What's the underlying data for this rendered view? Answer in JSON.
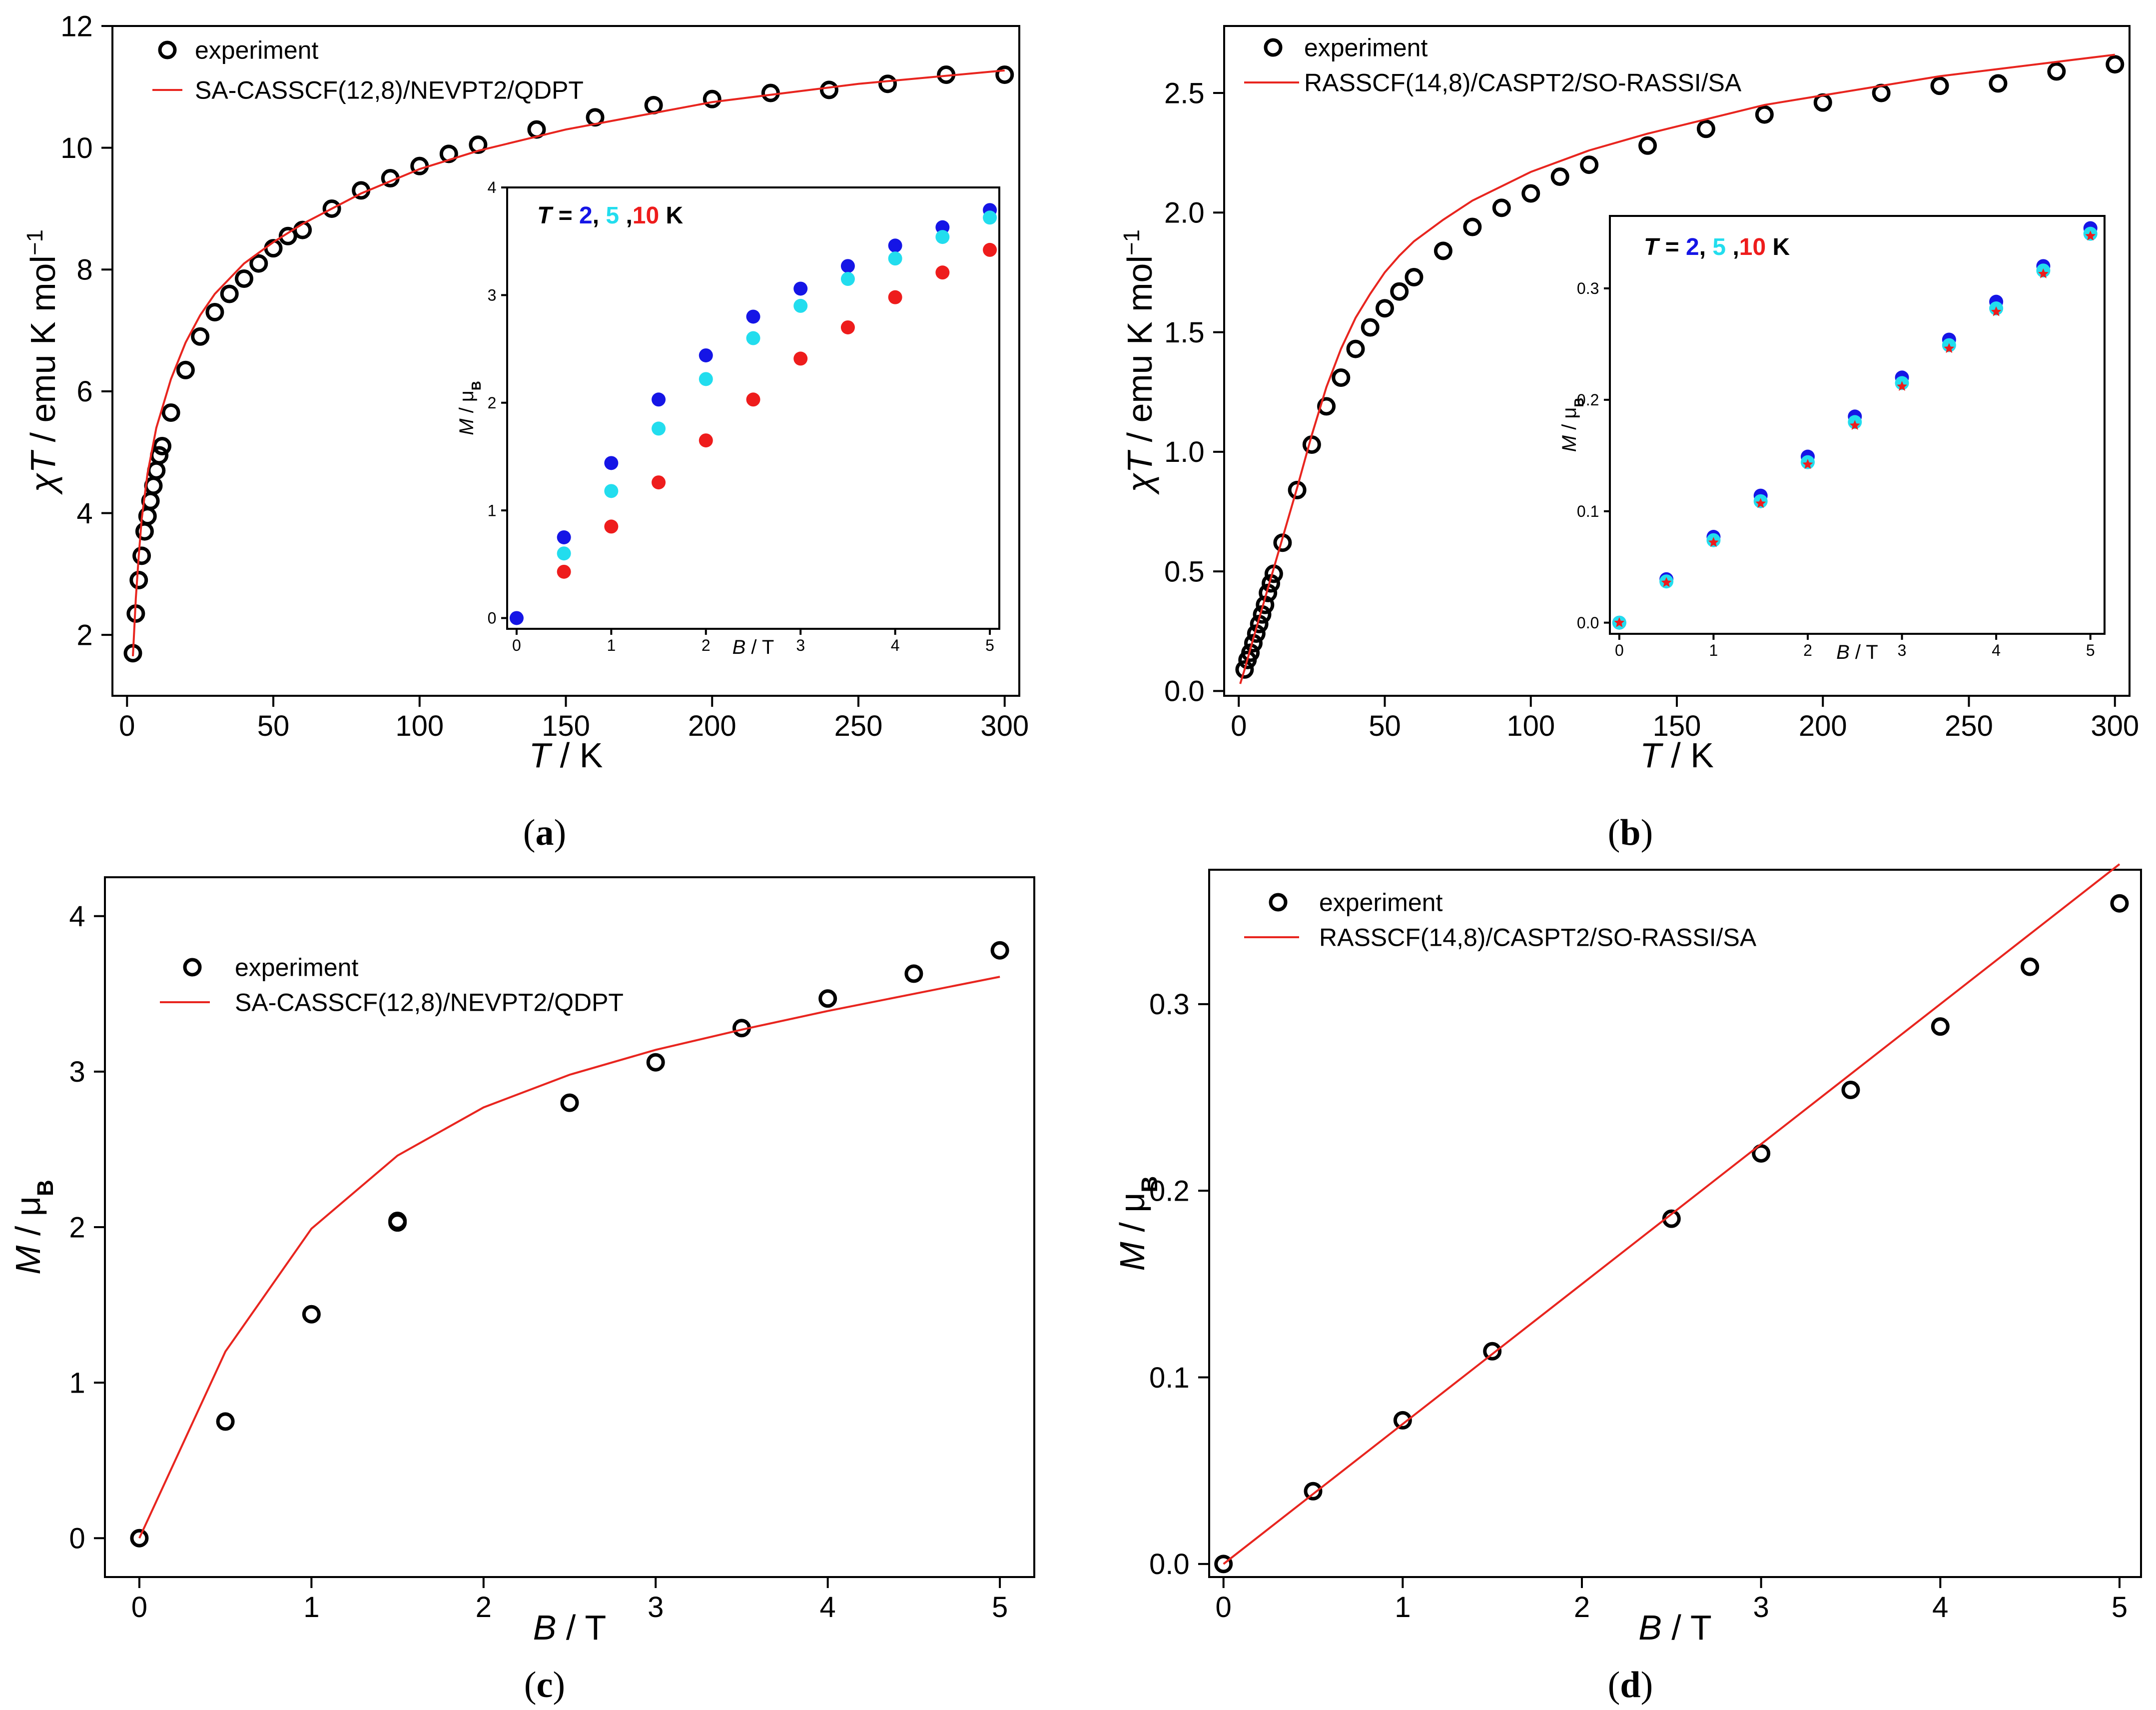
{
  "chart_data": [
    {
      "id": "a",
      "type": "scatter",
      "caption_letter": "a",
      "xlabel_var": "T",
      "xlabel_unit": " / K",
      "ylabel_var": "χT",
      "ylabel_unit": " / emu K mol",
      "ylabel_sup": "−1",
      "xlim": [
        -5,
        305
      ],
      "ylim": [
        1,
        12
      ],
      "xticks": [
        0,
        50,
        100,
        150,
        200,
        250,
        300
      ],
      "yticks": [
        2,
        4,
        6,
        8,
        10,
        12
      ],
      "legend": {
        "experiment": "experiment",
        "theory": "SA-CASSCF(12,8)/NEVPT2/QDPT"
      },
      "series": [
        {
          "name": "experiment",
          "style": "open-circle",
          "x": [
            2,
            3,
            4,
            5,
            6,
            7,
            8,
            9,
            10,
            11,
            12,
            15,
            20,
            25,
            30,
            35,
            40,
            45,
            50,
            55,
            60,
            70,
            80,
            90,
            100,
            110,
            120,
            140,
            160,
            180,
            200,
            220,
            240,
            260,
            280,
            300
          ],
          "y": [
            1.7,
            2.35,
            2.9,
            3.3,
            3.7,
            3.95,
            4.2,
            4.45,
            4.7,
            4.95,
            5.1,
            5.65,
            6.35,
            6.9,
            7.3,
            7.6,
            7.85,
            8.1,
            8.35,
            8.55,
            8.65,
            9.0,
            9.3,
            9.5,
            9.7,
            9.9,
            10.05,
            10.3,
            10.5,
            10.7,
            10.8,
            10.9,
            10.95,
            11.05,
            11.2,
            11.2
          ]
        },
        {
          "name": "SA-CASSCF(12,8)/NEVPT2/QDPT",
          "style": "line",
          "color": "#e8251f",
          "x": [
            2,
            3,
            4,
            5,
            7,
            10,
            15,
            20,
            25,
            30,
            40,
            50,
            60,
            70,
            80,
            100,
            120,
            150,
            200,
            250,
            300
          ],
          "y": [
            1.65,
            2.6,
            3.3,
            3.9,
            4.65,
            5.4,
            6.2,
            6.8,
            7.25,
            7.6,
            8.1,
            8.45,
            8.75,
            9.0,
            9.25,
            9.65,
            9.95,
            10.3,
            10.75,
            11.05,
            11.27
          ]
        }
      ]
    },
    {
      "id": "a-inset",
      "type": "scatter",
      "title_prefix": "T",
      "title_eq": " = ",
      "title_t2": "2",
      "title_sep1": ", ",
      "title_t5": "5",
      "title_sep2": " ,",
      "title_t10": "10",
      "title_unit": " K",
      "xlabel_var": "B",
      "xlabel_unit": " / T",
      "ylabel_var": "M",
      "ylabel_unit": " / μ",
      "ylabel_sub": "B",
      "xlim": [
        -0.1,
        5.1
      ],
      "ylim": [
        -0.1,
        4.0
      ],
      "xticks": [
        0,
        1,
        2,
        3,
        4,
        5
      ],
      "yticks": [
        0,
        1,
        2,
        3,
        4
      ],
      "series": [
        {
          "name": "T = 2 K",
          "color": "#1515e6",
          "x": [
            0,
            0.5,
            1,
            1.5,
            2,
            2.5,
            3,
            3.5,
            4,
            4.5,
            5
          ],
          "y": [
            0,
            0.75,
            1.44,
            2.03,
            2.44,
            2.8,
            3.06,
            3.27,
            3.46,
            3.63,
            3.79
          ]
        },
        {
          "name": "T = 5 K",
          "color": "#22ddee",
          "x": [
            0.5,
            1,
            1.5,
            2,
            2.5,
            3,
            3.5,
            4,
            4.5,
            5
          ],
          "y": [
            0.6,
            1.18,
            1.76,
            2.22,
            2.6,
            2.9,
            3.15,
            3.34,
            3.54,
            3.72
          ]
        },
        {
          "name": "T = 10 K",
          "color": "#ee1c1c",
          "x": [
            0.5,
            1,
            1.5,
            2,
            2.5,
            3,
            3.5,
            4,
            4.5,
            5
          ],
          "y": [
            0.43,
            0.85,
            1.26,
            1.65,
            2.03,
            2.41,
            2.7,
            2.98,
            3.21,
            3.42
          ]
        }
      ]
    },
    {
      "id": "b",
      "type": "scatter",
      "caption_letter": "b",
      "xlabel_var": "T",
      "xlabel_unit": " / K",
      "ylabel_var": "χT",
      "ylabel_unit": " / emu K mol",
      "ylabel_sup": "−1",
      "xlim": [
        -5,
        305
      ],
      "ylim": [
        -0.02,
        2.78
      ],
      "xticks": [
        0,
        50,
        100,
        150,
        200,
        250,
        300
      ],
      "yticks": [
        0.0,
        0.5,
        1.0,
        1.5,
        2.0,
        2.5
      ],
      "ytick_labels": [
        "0.0",
        "0.5",
        "1.0",
        "1.5",
        "2.0",
        "2.5"
      ],
      "legend": {
        "experiment": "experiment",
        "theory": "RASSCF(14,8)/CASPT2/SO-RASSI/SA"
      },
      "series": [
        {
          "name": "experiment",
          "style": "open-circle",
          "x": [
            2,
            3,
            4,
            5,
            6,
            7,
            8,
            9,
            10,
            11,
            12,
            15,
            20,
            25,
            30,
            35,
            40,
            45,
            50,
            55,
            60,
            70,
            80,
            90,
            100,
            110,
            120,
            140,
            160,
            180,
            200,
            220,
            240,
            260,
            280,
            300
          ],
          "y": [
            0.09,
            0.13,
            0.16,
            0.2,
            0.24,
            0.28,
            0.32,
            0.36,
            0.41,
            0.45,
            0.49,
            0.62,
            0.84,
            1.03,
            1.19,
            1.31,
            1.43,
            1.52,
            1.6,
            1.67,
            1.73,
            1.84,
            1.94,
            2.02,
            2.08,
            2.15,
            2.2,
            2.28,
            2.35,
            2.41,
            2.46,
            2.5,
            2.53,
            2.54,
            2.59,
            2.62
          ]
        },
        {
          "name": "RASSCF(14,8)/CASPT2/SO-RASSI/SA",
          "style": "line",
          "color": "#e8251f",
          "x": [
            0.5,
            2,
            5,
            10,
            15,
            20,
            25,
            30,
            35,
            40,
            45,
            50,
            55,
            60,
            70,
            80,
            90,
            100,
            120,
            140,
            160,
            180,
            200,
            220,
            240,
            260,
            280,
            300
          ],
          "y": [
            0.03,
            0.09,
            0.22,
            0.43,
            0.64,
            0.85,
            1.07,
            1.27,
            1.43,
            1.56,
            1.66,
            1.75,
            1.82,
            1.88,
            1.97,
            2.05,
            2.11,
            2.17,
            2.26,
            2.33,
            2.39,
            2.45,
            2.49,
            2.53,
            2.57,
            2.6,
            2.63,
            2.66
          ]
        }
      ]
    },
    {
      "id": "b-inset",
      "type": "scatter",
      "title_prefix": "T",
      "title_eq": " = ",
      "title_t2": "2",
      "title_sep1": ", ",
      "title_t5": "5",
      "title_sep2": " ,",
      "title_t10": "10",
      "title_unit": " K",
      "xlabel_var": "B",
      "xlabel_unit": " / T",
      "ylabel_var": "M",
      "ylabel_unit": " / μ",
      "ylabel_sub": "B",
      "xlim": [
        -0.1,
        5.15
      ],
      "ylim": [
        -0.01,
        0.365
      ],
      "xticks": [
        0,
        1,
        2,
        3,
        4,
        5
      ],
      "yticks": [
        0.0,
        0.1,
        0.2,
        0.3
      ],
      "ytick_labels": [
        "0.0",
        "0.1",
        "0.2",
        "0.3"
      ],
      "series": [
        {
          "name": "T = 2 K",
          "color": "#1515e6",
          "marker": "dot",
          "x": [
            0,
            0.5,
            1,
            1.5,
            2,
            2.5,
            3,
            3.5,
            4,
            4.5,
            5
          ],
          "y": [
            0,
            0.039,
            0.077,
            0.114,
            0.149,
            0.185,
            0.22,
            0.254,
            0.288,
            0.32,
            0.354
          ]
        },
        {
          "name": "T = 5 K",
          "color": "#22ddee",
          "marker": "dot",
          "x": [
            0,
            0.5,
            1,
            1.5,
            2,
            2.5,
            3,
            3.5,
            4,
            4.5,
            5
          ],
          "y": [
            0,
            0.037,
            0.074,
            0.109,
            0.144,
            0.18,
            0.215,
            0.249,
            0.282,
            0.316,
            0.349
          ]
        },
        {
          "name": "T = 10 K",
          "color": "#ee1c1c",
          "marker": "star",
          "x": [
            0,
            0.5,
            1,
            1.5,
            2,
            2.5,
            3,
            3.5,
            4,
            4.5,
            5
          ],
          "y": [
            0,
            0.036,
            0.072,
            0.107,
            0.142,
            0.177,
            0.212,
            0.246,
            0.279,
            0.313,
            0.347
          ]
        }
      ]
    },
    {
      "id": "c",
      "type": "scatter",
      "caption_letter": "c",
      "xlabel_var": "B",
      "xlabel_unit": " / T",
      "ylabel_var": "M",
      "ylabel_unit": " / μ",
      "ylabel_sub": "B",
      "xlim": [
        -0.2,
        5.2
      ],
      "ylim": [
        -0.25,
        4.25
      ],
      "xticks": [
        0,
        1,
        2,
        3,
        4,
        5
      ],
      "yticks": [
        0,
        1,
        2,
        3,
        4
      ],
      "legend": {
        "experiment": "experiment",
        "theory": "SA-CASSCF(12,8)/NEVPT2/QDPT"
      },
      "series": [
        {
          "name": "experiment",
          "style": "open-circle",
          "x": [
            0,
            0.5,
            1,
            1.5,
            1.5,
            2.5,
            3,
            3.5,
            4,
            4.5,
            5
          ],
          "y": [
            0,
            0.75,
            1.44,
            2.03,
            2.04,
            2.8,
            3.06,
            3.28,
            3.47,
            3.63,
            3.78
          ]
        },
        {
          "name": "SA-CASSCF(12,8)/NEVPT2/QDPT",
          "style": "line",
          "color": "#e8251f",
          "x": [
            0,
            0.5,
            1,
            1.5,
            2,
            2.5,
            3,
            3.5,
            4,
            4.5,
            5
          ],
          "y": [
            0,
            1.2,
            1.99,
            2.46,
            2.77,
            2.98,
            3.14,
            3.27,
            3.39,
            3.5,
            3.61
          ]
        }
      ]
    },
    {
      "id": "d",
      "type": "scatter",
      "caption_letter": "d",
      "xlabel_var": "B",
      "xlabel_unit": " / T",
      "ylabel_var": "M",
      "ylabel_unit": " / μ",
      "ylabel_sub": "B",
      "xlim": [
        -0.08,
        5.12
      ],
      "ylim": [
        -0.007,
        0.372
      ],
      "xticks": [
        0,
        1,
        2,
        3,
        4,
        5
      ],
      "yticks": [
        0.0,
        0.1,
        0.2,
        0.3
      ],
      "ytick_labels": [
        "0.0",
        "0.1",
        "0.2",
        "0.3"
      ],
      "legend": {
        "experiment": "experiment",
        "theory": "RASSCF(14,8)/CASPT2/SO-RASSI/SA"
      },
      "series": [
        {
          "name": "experiment",
          "style": "open-circle",
          "x": [
            0,
            0.5,
            1,
            1.5,
            2.5,
            3,
            3.5,
            4,
            4.5,
            5
          ],
          "y": [
            0,
            0.039,
            0.077,
            0.114,
            0.185,
            0.22,
            0.254,
            0.288,
            0.32,
            0.354
          ]
        },
        {
          "name": "RASSCF(14,8)/CASPT2/SO-RASSI/SA",
          "style": "line",
          "color": "#e8251f",
          "x": [
            0,
            5
          ],
          "y": [
            0,
            0.375
          ]
        }
      ]
    }
  ]
}
